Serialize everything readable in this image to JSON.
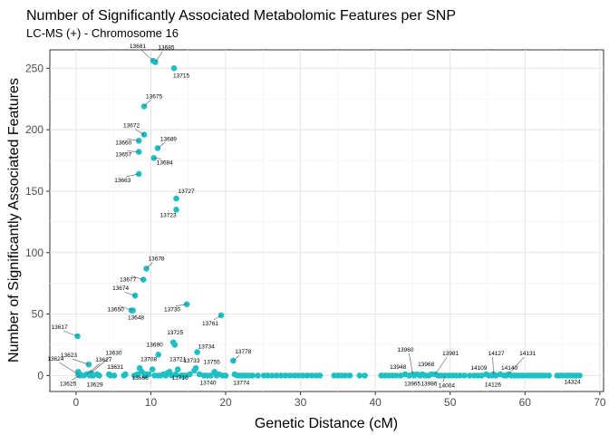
{
  "chart_data": {
    "type": "scatter",
    "title": "Number of Significantly Associated Metabolomic Features per SNP",
    "subtitle": "LC-MS (+) - Chromosome 16",
    "xlabel": "Genetic Distance (cM)",
    "ylabel": "Number of Significantly Associated Features",
    "xlim": [
      -3.5,
      70.5
    ],
    "ylim": [
      -13,
      265
    ],
    "xticks": [
      0,
      10,
      20,
      30,
      40,
      50,
      60,
      70
    ],
    "yticks": [
      0,
      50,
      100,
      150,
      200,
      250
    ],
    "grid": true,
    "point_color": "#1FBFC3",
    "labeled_points": [
      {
        "label": "13681",
        "x": 10.3,
        "y": 256
      },
      {
        "label": "13685",
        "x": 10.6,
        "y": 255
      },
      {
        "label": "13715",
        "x": 13.1,
        "y": 250
      },
      {
        "label": "13675",
        "x": 9.1,
        "y": 219
      },
      {
        "label": "13672",
        "x": 9.1,
        "y": 196
      },
      {
        "label": "13660",
        "x": 8.4,
        "y": 191
      },
      {
        "label": "13689",
        "x": 10.9,
        "y": 185
      },
      {
        "label": "13657",
        "x": 8.4,
        "y": 182
      },
      {
        "label": "13684",
        "x": 10.4,
        "y": 177
      },
      {
        "label": "13663",
        "x": 8.4,
        "y": 164
      },
      {
        "label": "13727",
        "x": 13.4,
        "y": 144
      },
      {
        "label": "13723",
        "x": 13.4,
        "y": 135
      },
      {
        "label": "13678",
        "x": 9.4,
        "y": 87
      },
      {
        "label": "13677",
        "x": 9.0,
        "y": 78
      },
      {
        "label": "13674",
        "x": 7.9,
        "y": 65
      },
      {
        "label": "13650",
        "x": 7.6,
        "y": 53
      },
      {
        "label": "13730",
        "x": 14.8,
        "y": 58
      },
      {
        "label": "13648",
        "x": 7.4,
        "y": 53
      },
      {
        "label": "13761",
        "x": 19.4,
        "y": 49
      },
      {
        "label": "13617",
        "x": 0.2,
        "y": 32
      },
      {
        "label": "13725",
        "x": 13.0,
        "y": 27
      },
      {
        "label": "13690",
        "x": 11.0,
        "y": 17
      },
      {
        "label": "13734",
        "x": 16.2,
        "y": 19
      },
      {
        "label": "13778",
        "x": 21.0,
        "y": 12
      },
      {
        "label": "13623",
        "x": 1.7,
        "y": 9
      },
      {
        "label": "13630",
        "x": 2.0,
        "y": 2
      },
      {
        "label": "13627",
        "x": 1.5,
        "y": 1
      },
      {
        "label": "13624",
        "x": 0.3,
        "y": 1
      },
      {
        "label": "13708",
        "x": 10.2,
        "y": 5
      },
      {
        "label": "13721",
        "x": 13.6,
        "y": 5
      },
      {
        "label": "13733",
        "x": 15.8,
        "y": 4
      },
      {
        "label": "13755",
        "x": 18.5,
        "y": 3
      },
      {
        "label": "13631",
        "x": 4.4,
        "y": 1
      },
      {
        "label": "13666",
        "x": 9.3,
        "y": 1
      },
      {
        "label": "13710",
        "x": 13.3,
        "y": 1
      },
      {
        "label": "13625",
        "x": 0.5,
        "y": 0
      },
      {
        "label": "13629",
        "x": 1.9,
        "y": 0
      },
      {
        "label": "13740",
        "x": 18.0,
        "y": 0
      },
      {
        "label": "13774",
        "x": 21.6,
        "y": 0
      },
      {
        "label": "13960",
        "x": 45.0,
        "y": 1
      },
      {
        "label": "13968",
        "x": 46.3,
        "y": 1
      },
      {
        "label": "13981",
        "x": 48.0,
        "y": 1
      },
      {
        "label": "13948",
        "x": 44.0,
        "y": 1
      },
      {
        "label": "13965",
        "x": 45.2,
        "y": 0
      },
      {
        "label": "13986",
        "x": 46.7,
        "y": 0
      },
      {
        "label": "14004",
        "x": 49.3,
        "y": 0
      },
      {
        "label": "14127",
        "x": 55.8,
        "y": 1
      },
      {
        "label": "14131",
        "x": 57.8,
        "y": 1
      },
      {
        "label": "14109",
        "x": 54.8,
        "y": 1
      },
      {
        "label": "14140",
        "x": 56.7,
        "y": 1
      },
      {
        "label": "14126",
        "x": 55.6,
        "y": 0
      },
      {
        "label": "14324",
        "x": 65.6,
        "y": 0
      }
    ],
    "other_points": [
      {
        "x": 0.3,
        "y": 3
      },
      {
        "x": 0.5,
        "y": 1
      },
      {
        "x": 1.0,
        "y": 0
      },
      {
        "x": 1.4,
        "y": 1
      },
      {
        "x": 2.3,
        "y": 0
      },
      {
        "x": 2.8,
        "y": 1
      },
      {
        "x": 3.1,
        "y": 0
      },
      {
        "x": 4.6,
        "y": 0
      },
      {
        "x": 5.1,
        "y": 0
      },
      {
        "x": 6.4,
        "y": 0
      },
      {
        "x": 6.6,
        "y": 1
      },
      {
        "x": 7.8,
        "y": 0
      },
      {
        "x": 8.2,
        "y": 1
      },
      {
        "x": 8.5,
        "y": 6
      },
      {
        "x": 8.8,
        "y": 3
      },
      {
        "x": 9.2,
        "y": 0
      },
      {
        "x": 9.7,
        "y": 1
      },
      {
        "x": 10.5,
        "y": 0
      },
      {
        "x": 11.0,
        "y": 0
      },
      {
        "x": 11.3,
        "y": 0
      },
      {
        "x": 11.7,
        "y": 1
      },
      {
        "x": 12.0,
        "y": 0
      },
      {
        "x": 12.2,
        "y": 2
      },
      {
        "x": 12.5,
        "y": 3
      },
      {
        "x": 12.8,
        "y": 0
      },
      {
        "x": 13.2,
        "y": 25
      },
      {
        "x": 14.0,
        "y": 0
      },
      {
        "x": 14.3,
        "y": 0
      },
      {
        "x": 14.6,
        "y": 0
      },
      {
        "x": 15.2,
        "y": 1
      },
      {
        "x": 16.0,
        "y": 6
      },
      {
        "x": 16.5,
        "y": 1
      },
      {
        "x": 17.1,
        "y": 0
      },
      {
        "x": 17.5,
        "y": 0
      },
      {
        "x": 18.8,
        "y": 0
      },
      {
        "x": 19.1,
        "y": 1
      },
      {
        "x": 19.6,
        "y": 0
      },
      {
        "x": 20.0,
        "y": 0
      },
      {
        "x": 21.2,
        "y": 1
      },
      {
        "x": 21.9,
        "y": 0
      },
      {
        "x": 22.3,
        "y": 0
      },
      {
        "x": 22.7,
        "y": 0
      },
      {
        "x": 23.2,
        "y": 0
      },
      {
        "x": 23.6,
        "y": 0
      },
      {
        "x": 24.3,
        "y": 0
      },
      {
        "x": 25.1,
        "y": 0
      },
      {
        "x": 25.6,
        "y": 0
      },
      {
        "x": 26.2,
        "y": 0
      },
      {
        "x": 26.8,
        "y": 0
      },
      {
        "x": 27.4,
        "y": 0
      },
      {
        "x": 28.0,
        "y": 0
      },
      {
        "x": 28.6,
        "y": 0
      },
      {
        "x": 29.2,
        "y": 0
      },
      {
        "x": 29.7,
        "y": 0
      },
      {
        "x": 30.3,
        "y": 0
      },
      {
        "x": 30.9,
        "y": 0
      },
      {
        "x": 31.5,
        "y": 0
      },
      {
        "x": 32.1,
        "y": 0
      },
      {
        "x": 32.6,
        "y": 0
      },
      {
        "x": 34.5,
        "y": 0
      },
      {
        "x": 35.0,
        "y": 0
      },
      {
        "x": 35.5,
        "y": 0
      },
      {
        "x": 36.0,
        "y": 0
      },
      {
        "x": 36.6,
        "y": 0
      },
      {
        "x": 37.9,
        "y": 0
      },
      {
        "x": 38.6,
        "y": 0
      },
      {
        "x": 40.8,
        "y": 0
      },
      {
        "x": 41.3,
        "y": 0
      },
      {
        "x": 41.8,
        "y": 0
      },
      {
        "x": 42.3,
        "y": 0
      },
      {
        "x": 42.8,
        "y": 0
      },
      {
        "x": 43.4,
        "y": 0
      },
      {
        "x": 44.5,
        "y": 0
      },
      {
        "x": 45.6,
        "y": 1
      },
      {
        "x": 46.0,
        "y": 0
      },
      {
        "x": 47.1,
        "y": 0
      },
      {
        "x": 47.5,
        "y": 1
      },
      {
        "x": 48.4,
        "y": 0
      },
      {
        "x": 48.8,
        "y": 0
      },
      {
        "x": 49.8,
        "y": 0
      },
      {
        "x": 50.3,
        "y": 0
      },
      {
        "x": 50.8,
        "y": 0
      },
      {
        "x": 51.3,
        "y": 0
      },
      {
        "x": 51.9,
        "y": 0
      },
      {
        "x": 52.6,
        "y": 0
      },
      {
        "x": 53.2,
        "y": 0
      },
      {
        "x": 53.7,
        "y": 0
      },
      {
        "x": 54.2,
        "y": 0
      },
      {
        "x": 55.2,
        "y": 0
      },
      {
        "x": 56.1,
        "y": 0
      },
      {
        "x": 57.2,
        "y": 0
      },
      {
        "x": 57.5,
        "y": 0
      },
      {
        "x": 58.2,
        "y": 0
      },
      {
        "x": 58.6,
        "y": 0
      },
      {
        "x": 59.0,
        "y": 0
      },
      {
        "x": 59.4,
        "y": 0
      },
      {
        "x": 59.8,
        "y": 0
      },
      {
        "x": 60.3,
        "y": 0
      },
      {
        "x": 60.7,
        "y": 0
      },
      {
        "x": 61.1,
        "y": 0
      },
      {
        "x": 61.5,
        "y": 0
      },
      {
        "x": 61.9,
        "y": 0
      },
      {
        "x": 62.3,
        "y": 0
      },
      {
        "x": 62.7,
        "y": 0
      },
      {
        "x": 63.2,
        "y": 0
      },
      {
        "x": 64.3,
        "y": 0
      },
      {
        "x": 64.7,
        "y": 0
      },
      {
        "x": 65.1,
        "y": 0
      },
      {
        "x": 66.0,
        "y": 0
      },
      {
        "x": 66.4,
        "y": 0
      },
      {
        "x": 66.8,
        "y": 0
      },
      {
        "x": 67.3,
        "y": 0
      }
    ]
  }
}
